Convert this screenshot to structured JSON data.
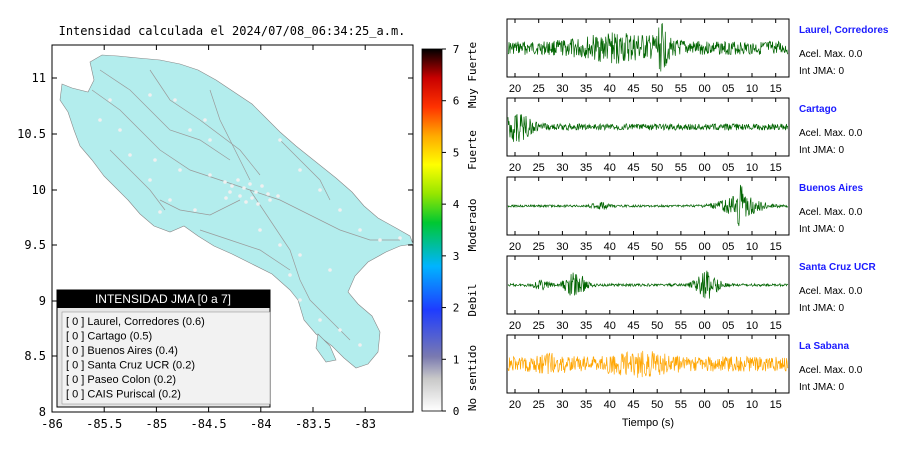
{
  "map": {
    "title": "Intensidad calculada el 2024/07/08_06:34:25_a.m.",
    "x_ticks": [
      "-86",
      "-85.5",
      "-85",
      "-84.5",
      "-84",
      "-83.5",
      "-83"
    ],
    "y_ticks": [
      "11",
      "10.5",
      "10",
      "9.5",
      "9",
      "8.5",
      "8"
    ],
    "land_color": "#b3eded",
    "legend": {
      "title": "INTENSIDAD JMA [0 a 7]",
      "items": [
        "[ 0 ]  Laurel, Corredores (0.6)",
        "[ 0 ]  Cartago (0.5)",
        "[ 0 ]  Buenos Aires (0.4)",
        "[ 0 ]  Santa Cruz UCR (0.2)",
        "[ 0 ]  Paseo Colon (0.2)",
        "[ 0 ]  CAIS Puriscal (0.2)"
      ]
    }
  },
  "colorbar": {
    "ticks": [
      "7",
      "6",
      "5",
      "4",
      "3",
      "2",
      "1",
      "0"
    ],
    "labels": [
      "Muy Fuerte",
      "Fuerte",
      "Moderado",
      "Debil",
      "No sentido"
    ]
  },
  "waveforms": {
    "x_ticks": [
      "20",
      "25",
      "30",
      "35",
      "40",
      "45",
      "50",
      "55",
      "00",
      "05",
      "10",
      "15"
    ],
    "xlabel": "Tiempo (s)",
    "stations": [
      {
        "name": "Laurel, Corredores",
        "acel": "Acel. Max. 0.0",
        "int": "Int JMA: 0",
        "color": "#006400"
      },
      {
        "name": "Cartago",
        "acel": "Acel. Max. 0.0",
        "int": "Int JMA: 0",
        "color": "#006400"
      },
      {
        "name": "Buenos Aires",
        "acel": "Acel. Max. 0.0",
        "int": "Int JMA: 0",
        "color": "#006400"
      },
      {
        "name": "Santa Cruz UCR",
        "acel": "Acel. Max. 0.0",
        "int": "Int JMA: 0",
        "color": "#006400"
      },
      {
        "name": "La Sabana",
        "acel": "Acel. Max. 0.0",
        "int": "Int JMA: 0",
        "color": "#ffa500"
      }
    ]
  },
  "chart_data": {
    "type": "map",
    "title": "Intensidad calculada el 2024/07/08_06:34:25_a.m.",
    "xlim": [
      -86,
      -82.5
    ],
    "ylim": [
      8,
      11.3
    ],
    "colorbar_range": [
      0,
      7
    ],
    "stations_intensity": [
      {
        "name": "Laurel, Corredores",
        "jma": 0,
        "value": 0.6
      },
      {
        "name": "Cartago",
        "jma": 0,
        "value": 0.5
      },
      {
        "name": "Buenos Aires",
        "jma": 0,
        "value": 0.4
      },
      {
        "name": "Santa Cruz UCR",
        "jma": 0,
        "value": 0.2
      },
      {
        "name": "Paseo Colon",
        "jma": 0,
        "value": 0.2
      },
      {
        "name": "CAIS Puriscal",
        "jma": 0,
        "value": 0.2
      }
    ]
  }
}
